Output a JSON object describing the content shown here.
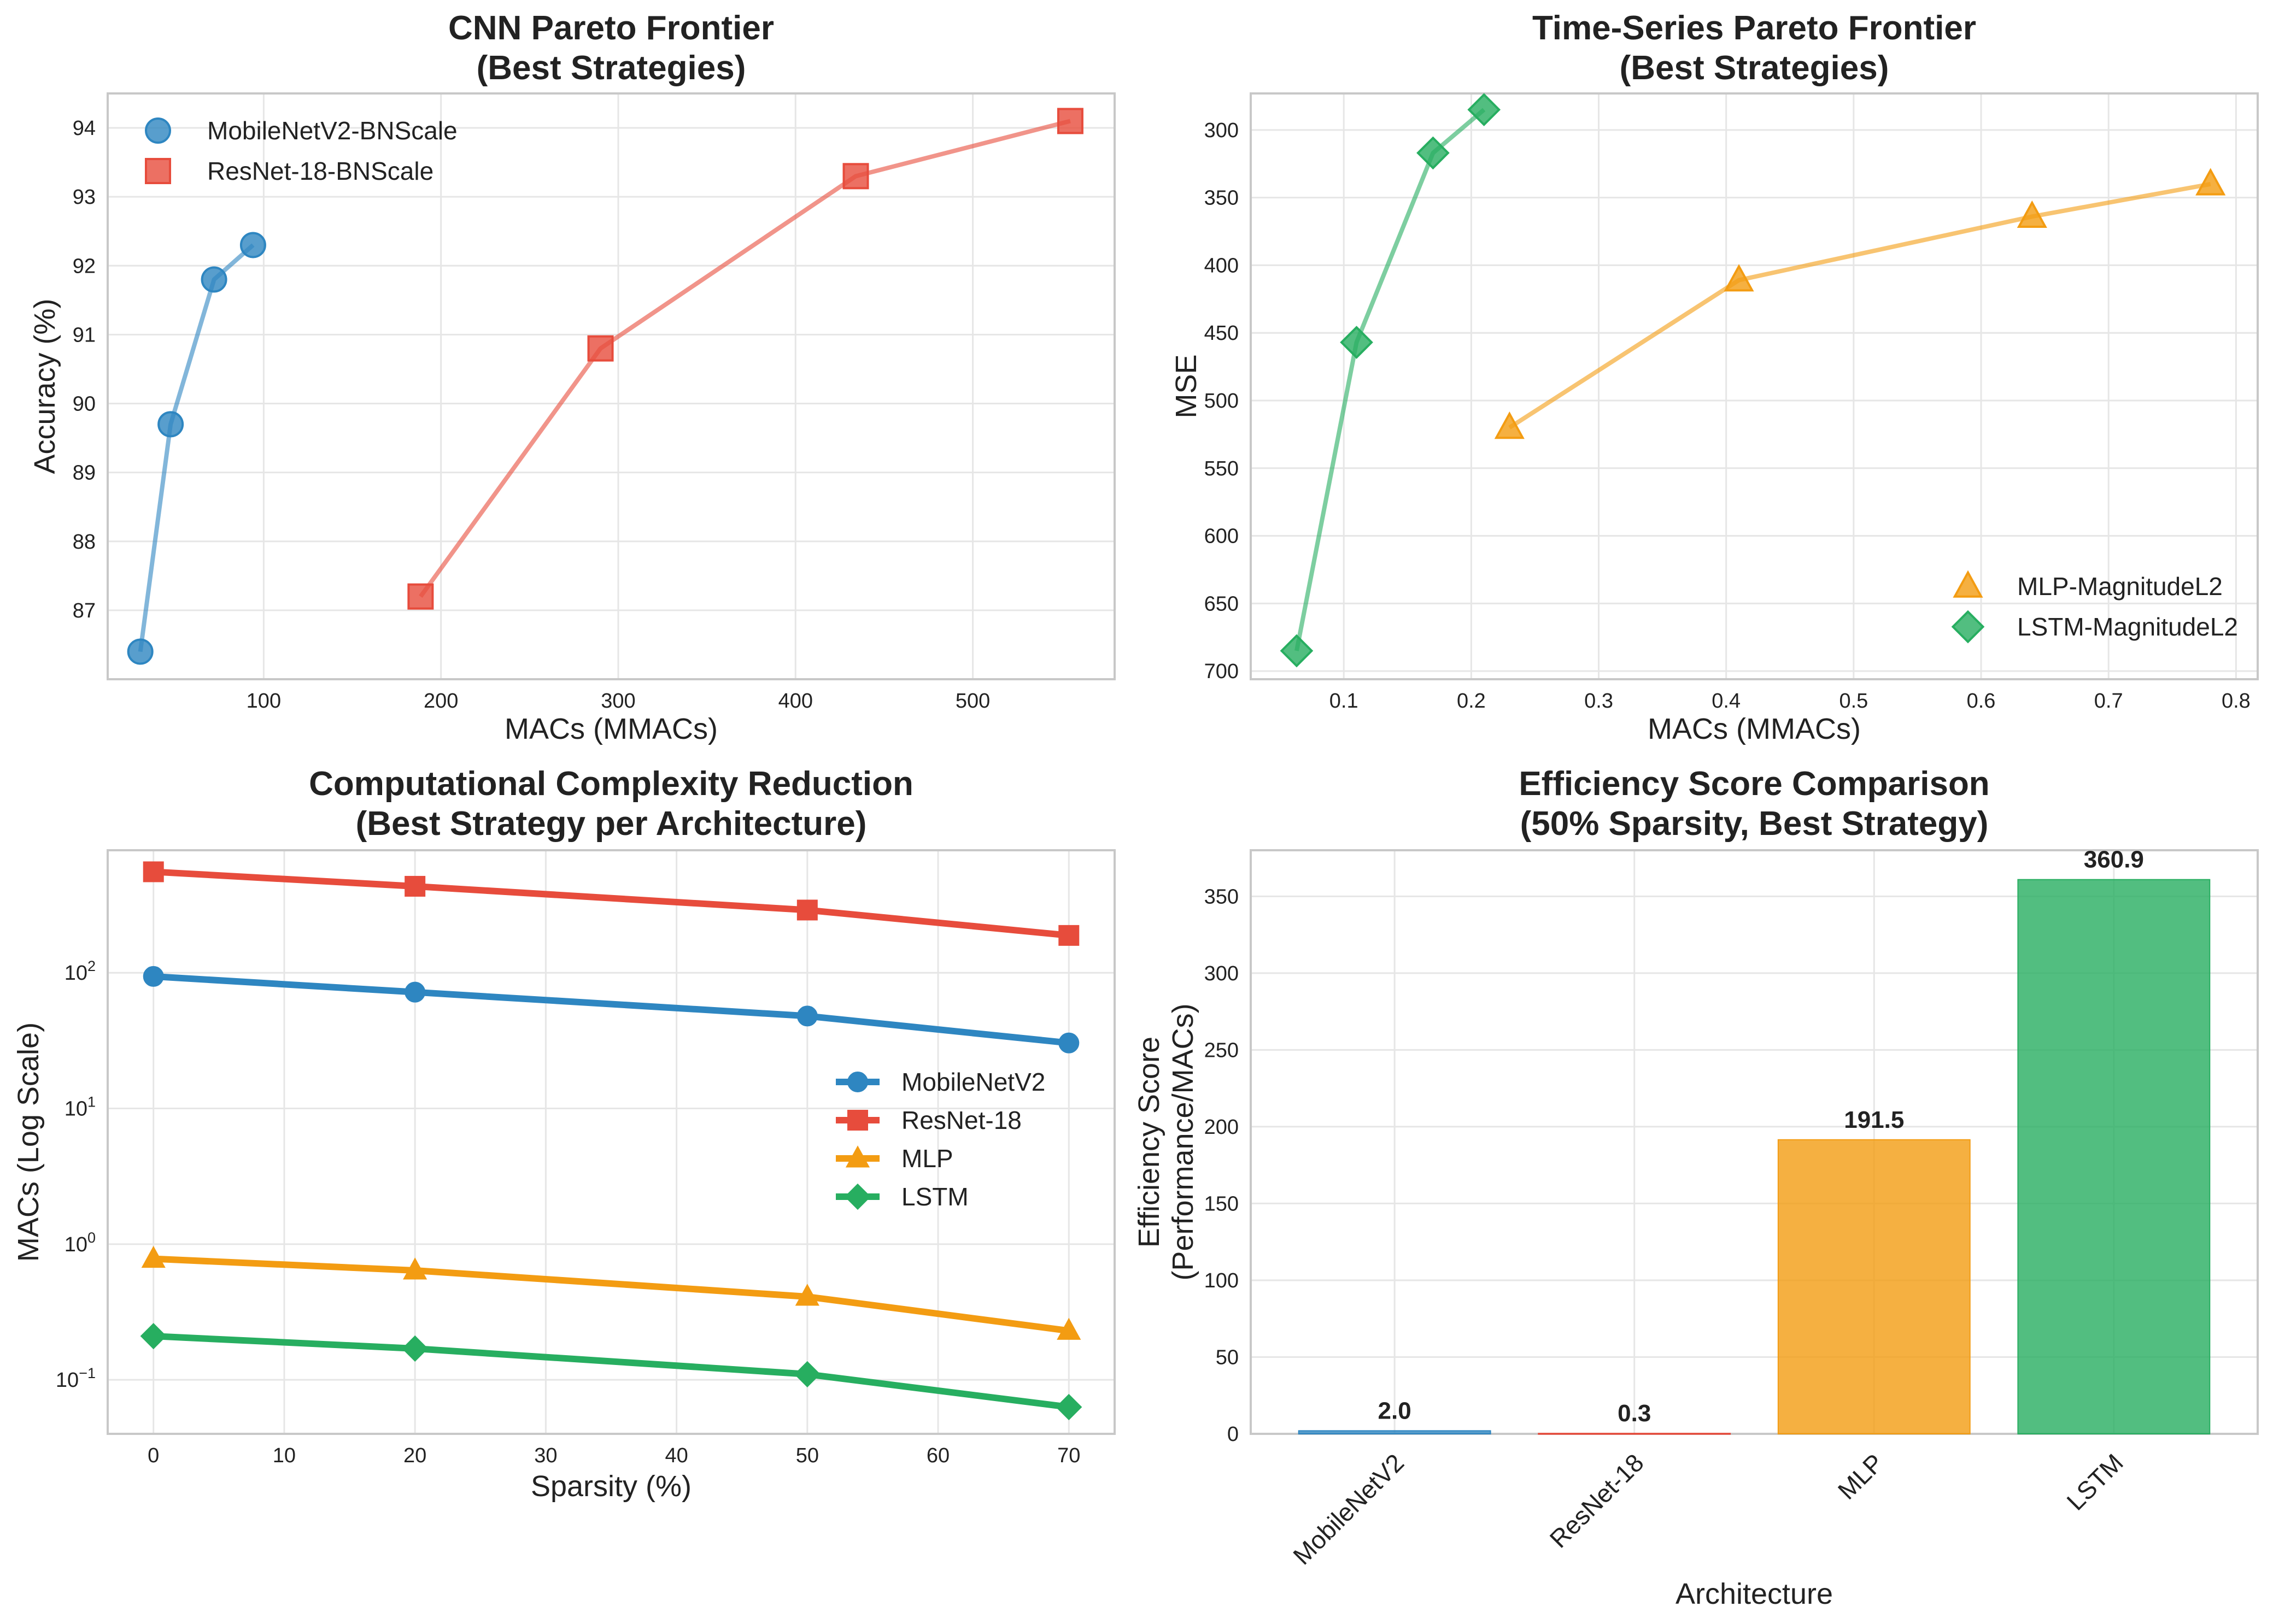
{
  "chart_data": [
    {
      "id": "cnn",
      "type": "line",
      "title": [
        "CNN Pareto Frontier",
        "(Best Strategies)"
      ],
      "xlabel": "MACs (MMACs)",
      "ylabel": "Accuracy (%)",
      "xlim": [
        12,
        580
      ],
      "ylim": [
        86.0,
        94.5
      ],
      "xticks": [
        100,
        200,
        300,
        400,
        500
      ],
      "yticks": [
        87,
        88,
        89,
        90,
        91,
        92,
        93,
        94
      ],
      "grid": true,
      "legend_position": "top-left",
      "series": [
        {
          "name": "MobileNetV2-BNScale",
          "color": "#2e86c1",
          "marker": "circle",
          "x": [
            30.4,
            47.5,
            72.0,
            94.0
          ],
          "y": [
            86.4,
            89.7,
            91.8,
            92.3
          ]
        },
        {
          "name": "ResNet-18-BNScale",
          "color": "#e74c3c",
          "marker": "square",
          "x": [
            188.5,
            290.0,
            434.0,
            555.0
          ],
          "y": [
            87.2,
            90.8,
            93.3,
            94.1
          ]
        }
      ]
    },
    {
      "id": "ts",
      "type": "line",
      "title": [
        "Time-Series Pareto Frontier",
        "(Best Strategies)"
      ],
      "xlabel": "MACs (MMACs)",
      "ylabel": "MSE",
      "xlim": [
        0.027,
        0.817
      ],
      "ylim": [
        706,
        273
      ],
      "y_inverted": true,
      "xticks": [
        0.1,
        0.2,
        0.3,
        0.4,
        0.5,
        0.6,
        0.7,
        0.8
      ],
      "yticks": [
        300,
        350,
        400,
        450,
        500,
        550,
        600,
        650,
        700
      ],
      "grid": true,
      "legend_position": "bottom-right",
      "series": [
        {
          "name": "MLP-MagnitudeL2",
          "color": "#f39c12",
          "marker": "triangle",
          "x": [
            0.23,
            0.41,
            0.64,
            0.78
          ],
          "y": [
            520,
            411,
            364,
            340
          ]
        },
        {
          "name": "LSTM-MagnitudeL2",
          "color": "#27ae60",
          "marker": "diamond",
          "x": [
            0.063,
            0.11,
            0.17,
            0.21
          ],
          "y": [
            685,
            457,
            317,
            285
          ]
        }
      ]
    },
    {
      "id": "complexity",
      "type": "line",
      "title": [
        "Computational Complexity Reduction",
        "(Best Strategy per Architecture)"
      ],
      "xlabel": "Sparsity (%)",
      "ylabel": "MACs (Log Scale)",
      "y_scale": "log",
      "xlim": [
        -3.5,
        73.5
      ],
      "ylim": [
        0.04,
        800
      ],
      "xticks": [
        0,
        10,
        20,
        30,
        40,
        50,
        60,
        70
      ],
      "yticks": [
        0.1,
        1,
        10,
        100
      ],
      "ytick_labels": [
        {
          "base": "10",
          "exp": "−1"
        },
        {
          "base": "10",
          "exp": "0"
        },
        {
          "base": "10",
          "exp": "1"
        },
        {
          "base": "10",
          "exp": "2"
        }
      ],
      "grid": true,
      "legend_position": "center-right",
      "series": [
        {
          "name": "MobileNetV2",
          "color": "#2e86c1",
          "marker": "circle",
          "x": [
            0,
            20,
            50,
            70
          ],
          "y": [
            94,
            72,
            48,
            30.4
          ]
        },
        {
          "name": "ResNet-18",
          "color": "#e74c3c",
          "marker": "square",
          "x": [
            0,
            20,
            50,
            70
          ],
          "y": [
            555,
            434,
            290,
            188.5
          ]
        },
        {
          "name": "MLP",
          "color": "#f39c12",
          "marker": "triangle",
          "x": [
            0,
            20,
            50,
            70
          ],
          "y": [
            0.78,
            0.64,
            0.41,
            0.23
          ]
        },
        {
          "name": "LSTM",
          "color": "#27ae60",
          "marker": "diamond",
          "x": [
            0,
            20,
            50,
            70
          ],
          "y": [
            0.21,
            0.17,
            0.11,
            0.063
          ]
        }
      ]
    },
    {
      "id": "efficiency",
      "type": "bar",
      "title": [
        "Efficiency Score Comparison",
        "(50% Sparsity, Best Strategy)"
      ],
      "xlabel": "Architecture",
      "ylabel": [
        "Efficiency Score",
        "(Performance/MACs)"
      ],
      "ylim": [
        0,
        380
      ],
      "yticks": [
        0,
        50,
        100,
        150,
        200,
        250,
        300,
        350
      ],
      "grid": true,
      "categories": [
        "MobileNetV2",
        "ResNet-18",
        "MLP",
        "LSTM"
      ],
      "values": [
        2.0,
        0.3,
        191.5,
        360.9
      ],
      "value_labels": [
        "2.0",
        "0.3",
        "191.5",
        "360.9"
      ],
      "colors": [
        "#2e86c1",
        "#e74c3c",
        "#f39c12",
        "#27ae60"
      ]
    }
  ]
}
